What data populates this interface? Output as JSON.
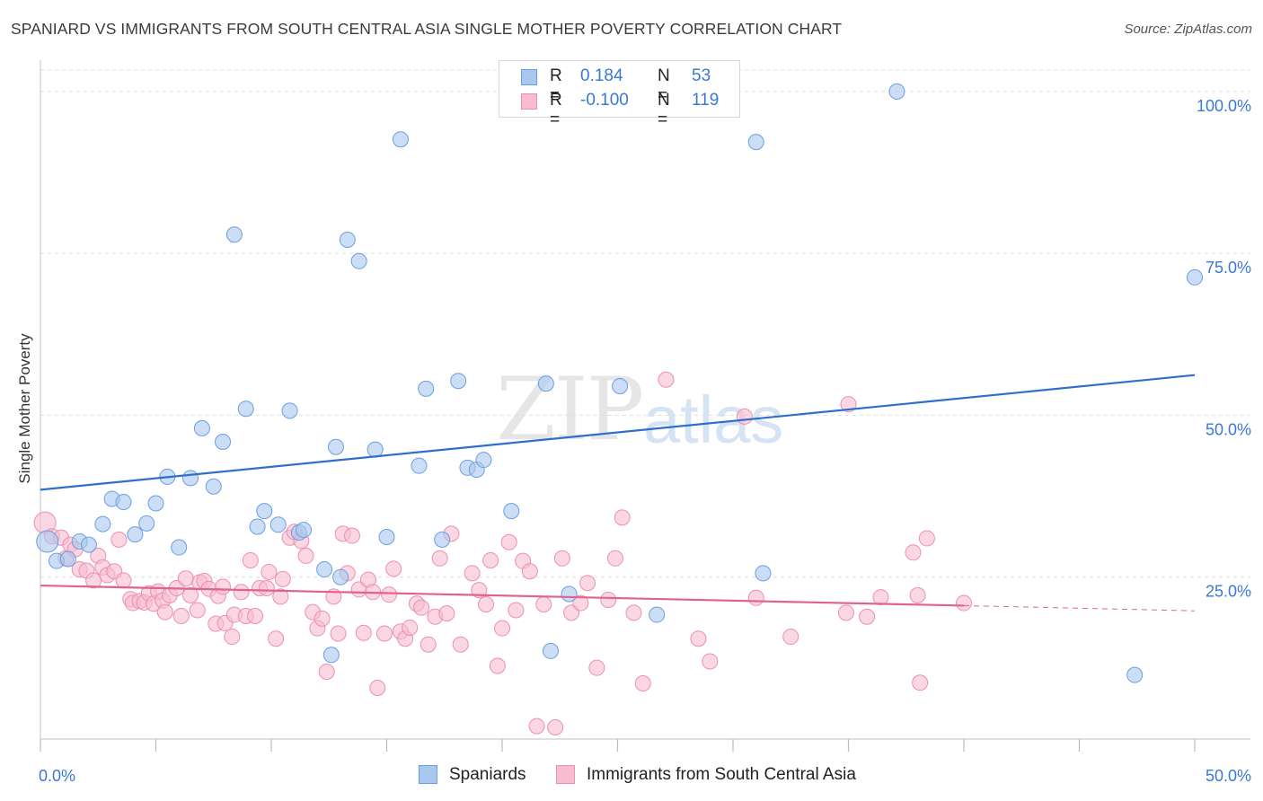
{
  "title": "SPANIARD VS IMMIGRANTS FROM SOUTH CENTRAL ASIA SINGLE MOTHER POVERTY CORRELATION CHART",
  "source": "Source: ZipAtlas.com",
  "watermark": {
    "zip": "ZIP",
    "atlas": "atlas"
  },
  "legend": {
    "r_label": "R =",
    "n_label": "N =",
    "series": [
      {
        "r": "0.184",
        "n": "53"
      },
      {
        "r": "-0.100",
        "n": "119"
      }
    ]
  },
  "colors": {
    "blue_fill": "#a9c8f0",
    "blue_stroke": "#6a9fe0",
    "blue_line": "#2f6fcc",
    "pink_fill": "#f6bdd0",
    "pink_stroke": "#ec8fb0",
    "pink_line": "#e0628f",
    "tick_label": "#3a78d6",
    "grid": "#dddddd"
  },
  "chart_data": {
    "type": "scatter",
    "title": "SPANIARD VS IMMIGRANTS FROM SOUTH CENTRAL ASIA SINGLE MOTHER POVERTY CORRELATION CHART",
    "xlabel": "",
    "ylabel": "Single Mother Poverty",
    "xlim": [
      0,
      50
    ],
    "ylim": [
      0,
      104
    ],
    "x_tick_labels": [
      "0.0%",
      "50.0%"
    ],
    "y_ticks": [
      25,
      50,
      75,
      100
    ],
    "y_tick_labels": [
      "25.0%",
      "50.0%",
      "75.0%",
      "100.0%"
    ],
    "series": [
      {
        "name": "Spaniards",
        "color": "#a9c8f0",
        "trend": {
          "x": [
            0,
            50
          ],
          "y": [
            38.5,
            56.2
          ],
          "dashed_from": 50
        },
        "points": [
          [
            0.3,
            30.5
          ],
          [
            0.7,
            27.5
          ],
          [
            1.2,
            27.8
          ],
          [
            1.7,
            30.5
          ],
          [
            2.1,
            30.0
          ],
          [
            2.7,
            33.2
          ],
          [
            3.1,
            37.1
          ],
          [
            3.6,
            36.6
          ],
          [
            4.1,
            31.6
          ],
          [
            4.6,
            33.3
          ],
          [
            5.0,
            36.4
          ],
          [
            5.5,
            40.5
          ],
          [
            6.0,
            29.6
          ],
          [
            6.5,
            40.3
          ],
          [
            7.0,
            48.0
          ],
          [
            7.5,
            39.0
          ],
          [
            7.9,
            45.9
          ],
          [
            8.4,
            77.9
          ],
          [
            8.9,
            51.0
          ],
          [
            9.4,
            32.8
          ],
          [
            9.7,
            35.2
          ],
          [
            10.3,
            33.1
          ],
          [
            10.8,
            50.7
          ],
          [
            11.2,
            31.9
          ],
          [
            11.4,
            32.3
          ],
          [
            12.3,
            26.2
          ],
          [
            12.6,
            13.0
          ],
          [
            12.8,
            45.1
          ],
          [
            13.0,
            25.0
          ],
          [
            13.3,
            77.1
          ],
          [
            13.8,
            73.8
          ],
          [
            14.5,
            44.7
          ],
          [
            15.0,
            31.2
          ],
          [
            15.6,
            92.6
          ],
          [
            16.4,
            42.2
          ],
          [
            16.7,
            54.1
          ],
          [
            17.4,
            30.8
          ],
          [
            18.1,
            55.3
          ],
          [
            18.5,
            41.9
          ],
          [
            18.9,
            41.6
          ],
          [
            19.2,
            43.1
          ],
          [
            20.4,
            35.2
          ],
          [
            20.9,
            100.2
          ],
          [
            21.9,
            54.9
          ],
          [
            22.1,
            13.6
          ],
          [
            22.9,
            22.4
          ],
          [
            25.1,
            54.5
          ],
          [
            26.7,
            19.2
          ],
          [
            31.0,
            92.2
          ],
          [
            31.3,
            25.6
          ],
          [
            37.1,
            100.0
          ],
          [
            47.4,
            9.9
          ],
          [
            50.0,
            71.3
          ]
        ]
      },
      {
        "name": "Immigrants from South Central Asia",
        "color": "#f6bdd0",
        "trend": {
          "x": [
            0,
            40,
            50
          ],
          "y": [
            23.7,
            20.6,
            19.8
          ],
          "dashed_from": 40
        },
        "points": [
          [
            0.2,
            33.4
          ],
          [
            0.5,
            31.3
          ],
          [
            0.9,
            31.1
          ],
          [
            1.1,
            27.9
          ],
          [
            1.3,
            30.0
          ],
          [
            1.5,
            29.3
          ],
          [
            1.7,
            26.2
          ],
          [
            2.0,
            26.0
          ],
          [
            2.3,
            24.5
          ],
          [
            2.5,
            28.3
          ],
          [
            2.7,
            26.5
          ],
          [
            2.9,
            25.3
          ],
          [
            3.2,
            25.9
          ],
          [
            3.4,
            30.8
          ],
          [
            3.6,
            24.5
          ],
          [
            3.9,
            21.6
          ],
          [
            4.0,
            21.0
          ],
          [
            4.3,
            21.3
          ],
          [
            4.5,
            21.1
          ],
          [
            4.7,
            22.5
          ],
          [
            4.9,
            20.9
          ],
          [
            5.1,
            22.8
          ],
          [
            5.3,
            21.4
          ],
          [
            5.4,
            19.6
          ],
          [
            5.6,
            22.2
          ],
          [
            5.9,
            23.3
          ],
          [
            6.1,
            19.0
          ],
          [
            6.3,
            24.8
          ],
          [
            6.5,
            22.2
          ],
          [
            6.8,
            19.9
          ],
          [
            6.9,
            24.2
          ],
          [
            7.1,
            24.4
          ],
          [
            7.3,
            23.2
          ],
          [
            7.6,
            17.8
          ],
          [
            7.7,
            22.1
          ],
          [
            7.9,
            23.5
          ],
          [
            8.0,
            17.9
          ],
          [
            8.3,
            15.8
          ],
          [
            8.4,
            19.2
          ],
          [
            8.7,
            22.7
          ],
          [
            8.9,
            19.0
          ],
          [
            9.1,
            27.6
          ],
          [
            9.3,
            19.0
          ],
          [
            9.5,
            23.3
          ],
          [
            9.8,
            23.3
          ],
          [
            9.9,
            25.8
          ],
          [
            10.2,
            15.5
          ],
          [
            10.4,
            22.0
          ],
          [
            10.5,
            24.7
          ],
          [
            10.8,
            31.1
          ],
          [
            11.0,
            32.0
          ],
          [
            11.3,
            30.6
          ],
          [
            11.5,
            28.3
          ],
          [
            11.8,
            19.6
          ],
          [
            12.0,
            17.1
          ],
          [
            12.2,
            18.6
          ],
          [
            12.4,
            10.4
          ],
          [
            12.7,
            22.0
          ],
          [
            12.9,
            16.3
          ],
          [
            13.1,
            31.7
          ],
          [
            13.3,
            25.6
          ],
          [
            13.5,
            31.4
          ],
          [
            13.8,
            23.1
          ],
          [
            14.0,
            16.4
          ],
          [
            14.2,
            24.6
          ],
          [
            14.4,
            22.7
          ],
          [
            14.6,
            7.9
          ],
          [
            14.9,
            16.3
          ],
          [
            15.1,
            22.3
          ],
          [
            15.3,
            26.3
          ],
          [
            15.6,
            16.6
          ],
          [
            15.8,
            15.5
          ],
          [
            16.0,
            17.2
          ],
          [
            16.3,
            20.9
          ],
          [
            16.5,
            20.3
          ],
          [
            16.8,
            14.6
          ],
          [
            17.1,
            18.9
          ],
          [
            17.3,
            27.9
          ],
          [
            17.6,
            19.4
          ],
          [
            17.8,
            31.7
          ],
          [
            18.2,
            14.6
          ],
          [
            18.7,
            25.6
          ],
          [
            19.0,
            23.0
          ],
          [
            19.3,
            20.8
          ],
          [
            19.5,
            27.6
          ],
          [
            19.8,
            11.3
          ],
          [
            20.0,
            17.1
          ],
          [
            20.3,
            30.4
          ],
          [
            20.6,
            19.9
          ],
          [
            20.9,
            27.5
          ],
          [
            21.2,
            25.9
          ],
          [
            21.5,
            2.0
          ],
          [
            21.8,
            20.8
          ],
          [
            22.3,
            1.8
          ],
          [
            22.6,
            27.9
          ],
          [
            23.0,
            19.5
          ],
          [
            23.4,
            21.0
          ],
          [
            23.7,
            24.1
          ],
          [
            24.1,
            11.0
          ],
          [
            24.6,
            21.5
          ],
          [
            24.9,
            27.9
          ],
          [
            25.2,
            34.2
          ],
          [
            25.7,
            19.5
          ],
          [
            26.1,
            8.6
          ],
          [
            27.1,
            55.5
          ],
          [
            28.5,
            15.5
          ],
          [
            29.0,
            12.0
          ],
          [
            30.5,
            49.8
          ],
          [
            31.0,
            21.8
          ],
          [
            32.5,
            15.8
          ],
          [
            34.9,
            19.5
          ],
          [
            35.0,
            51.7
          ],
          [
            35.8,
            18.9
          ],
          [
            36.4,
            21.9
          ],
          [
            37.8,
            28.8
          ],
          [
            38.0,
            22.2
          ],
          [
            38.1,
            8.7
          ],
          [
            38.4,
            31.0
          ],
          [
            40.0,
            21.0
          ]
        ]
      }
    ]
  },
  "bottom_legend": [
    {
      "label": "Spaniards"
    },
    {
      "label": "Immigrants from South Central Asia"
    }
  ]
}
